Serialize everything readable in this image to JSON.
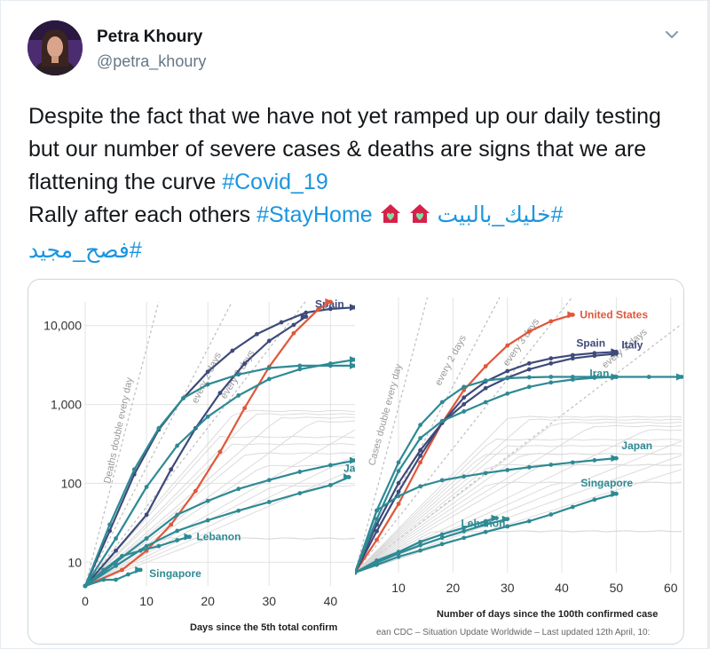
{
  "tweet": {
    "author_name": "Petra Khoury",
    "author_handle": "@petra_khoury",
    "text_part1": "Despite the fact that we have not yet ramped up our daily testing but our number of severe cases & deaths are signs that we are flattening the curve ",
    "hashtag_covid": "#Covid_19",
    "text_part2": "Rally after each others ",
    "hashtag_stayhome": "#StayHome",
    "hashtag_arabic_1": "#خليك_بالبيت",
    "hashtag_arabic_2": "#فصح_مجيد"
  },
  "media": {
    "source_caption": "ean CDC – Situation Update Worldwide – Last updated 12th April, 10:"
  },
  "chart_data": [
    {
      "type": "line",
      "scale": "log",
      "xlabel": "Days since the 5th total confirm",
      "y_tick_labels": [
        "10,000",
        "1,000",
        "100",
        "10"
      ],
      "y_ticks": [
        10000,
        1000,
        100,
        10
      ],
      "x_ticks": [
        0,
        10,
        20,
        30,
        40
      ],
      "ylim": [
        5,
        20000
      ],
      "xlim": [
        0,
        44
      ],
      "guide_labels": [
        "Deaths double every day",
        "every 2 days",
        "every 3 days"
      ],
      "series": [
        {
          "name": "Spain",
          "color": "#3e4a7a",
          "x": [
            0,
            4,
            8,
            12,
            16,
            20,
            24,
            28,
            32,
            36,
            40,
            44
          ],
          "y": [
            5,
            25,
            130,
            480,
            1200,
            2600,
            4800,
            7800,
            11000,
            14600,
            16300,
            17000
          ]
        },
        {
          "name": "",
          "color": "#e0573a",
          "x": [
            0,
            6,
            10,
            14,
            18,
            22,
            26,
            30,
            34,
            38,
            40
          ],
          "y": [
            5,
            8,
            14,
            30,
            80,
            250,
            900,
            3000,
            8000,
            16000,
            20000
          ]
        },
        {
          "name": "",
          "color": "#3e4a7a",
          "x": [
            0,
            5,
            10,
            14,
            18,
            22,
            26,
            30,
            34,
            36
          ],
          "y": [
            5,
            14,
            40,
            150,
            500,
            1400,
            3300,
            6400,
            10200,
            13000
          ]
        },
        {
          "name": "",
          "color": "#2e8a94",
          "x": [
            0,
            5,
            10,
            15,
            20,
            25,
            30,
            35,
            40,
            44
          ],
          "y": [
            5,
            20,
            90,
            300,
            700,
            1300,
            2100,
            2800,
            3300,
            3700
          ]
        },
        {
          "name": "",
          "color": "#2e8a94",
          "x": [
            0,
            4,
            8,
            12,
            16,
            20,
            25,
            30,
            35,
            40,
            44
          ],
          "y": [
            5,
            30,
            150,
            500,
            1200,
            1800,
            2400,
            2900,
            3100,
            3100,
            3100
          ]
        },
        {
          "name": "Ja",
          "color": "#2e8a94",
          "x": [
            0,
            5,
            10,
            15,
            20,
            25,
            30,
            35,
            40,
            43
          ],
          "y": [
            5,
            9,
            16,
            25,
            34,
            45,
            58,
            75,
            95,
            120
          ]
        },
        {
          "name": "",
          "color": "#2e8a94",
          "x": [
            0,
            5,
            10,
            15,
            20,
            25,
            30,
            35,
            40,
            44
          ],
          "y": [
            5,
            10,
            20,
            40,
            60,
            85,
            110,
            140,
            170,
            195
          ]
        },
        {
          "name": "Lebanon",
          "color": "#2e8a94",
          "x": [
            0,
            3,
            6,
            9,
            12,
            15,
            17
          ],
          "y": [
            5,
            8,
            12,
            14,
            16,
            19,
            21
          ]
        },
        {
          "name": "Singapore",
          "color": "#2e8a94",
          "x": [
            0,
            3,
            5,
            7,
            9
          ],
          "y": [
            5,
            6,
            6,
            7,
            8
          ]
        }
      ]
    },
    {
      "type": "line",
      "scale": "log",
      "xlabel": "Number of days since the 100th confirmed case",
      "x_ticks": [
        10,
        20,
        30,
        40,
        50,
        60
      ],
      "ylim": [
        100,
        1000000
      ],
      "xlim": [
        2,
        62
      ],
      "guide_labels": [
        "Cases double every day",
        "every 2 days",
        "every 3 days",
        "every 5 days"
      ],
      "series": [
        {
          "name": "United States",
          "color": "#e0573a",
          "x": [
            2,
            6,
            10,
            14,
            18,
            22,
            26,
            30,
            34,
            38,
            42
          ],
          "y": [
            100,
            300,
            1000,
            4000,
            15000,
            45000,
            100000,
            200000,
            320000,
            450000,
            560000
          ]
        },
        {
          "name": "Spain",
          "color": "#3e4a7a",
          "x": [
            2,
            6,
            10,
            14,
            18,
            22,
            26,
            30,
            34,
            38,
            42,
            46,
            50
          ],
          "y": [
            100,
            400,
            1500,
            5000,
            15000,
            35000,
            60000,
            85000,
            110000,
            130000,
            145000,
            155000,
            162000
          ]
        },
        {
          "name": "Italy",
          "color": "#3e4a7a",
          "x": [
            2,
            6,
            10,
            14,
            18,
            22,
            26,
            30,
            34,
            38,
            42,
            46,
            50
          ],
          "y": [
            100,
            500,
            2000,
            6000,
            15000,
            28000,
            48000,
            68000,
            90000,
            110000,
            130000,
            142000,
            152000
          ]
        },
        {
          "name": "Iran",
          "color": "#2e8a94",
          "x": [
            2,
            6,
            10,
            14,
            18,
            22,
            26,
            30,
            34,
            38,
            42,
            46,
            50
          ],
          "y": [
            100,
            600,
            3000,
            9000,
            16000,
            22000,
            30000,
            40000,
            50000,
            58000,
            64000,
            68000,
            70000
          ]
        },
        {
          "name": "",
          "color": "#2e8a94",
          "x": [
            2,
            6,
            10,
            14,
            18,
            22,
            26,
            30,
            34,
            38,
            42,
            46,
            50,
            56,
            62
          ],
          "y": [
            100,
            800,
            4000,
            14000,
            30000,
            50000,
            62000,
            67000,
            69000,
            70000,
            70000,
            70000,
            70000,
            70000,
            70000
          ]
        },
        {
          "name": "Japan",
          "color": "#2e8a94",
          "x": [
            2,
            6,
            10,
            14,
            18,
            22,
            26,
            30,
            34,
            38,
            42,
            46,
            50
          ],
          "y": [
            100,
            800,
            1300,
            1800,
            2200,
            2500,
            2800,
            3100,
            3400,
            3700,
            4000,
            4300,
            4600
          ]
        },
        {
          "name": "Singapore",
          "color": "#2e8a94",
          "x": [
            2,
            6,
            10,
            14,
            18,
            22,
            26,
            30,
            34,
            38,
            42,
            46,
            50
          ],
          "y": [
            100,
            130,
            170,
            210,
            260,
            320,
            390,
            470,
            560,
            700,
            900,
            1150,
            1400
          ]
        },
        {
          "name": "Lebanon",
          "color": "#2e8a94",
          "x": [
            2,
            6,
            10,
            14,
            18,
            22,
            26,
            28
          ],
          "y": [
            100,
            150,
            200,
            280,
            360,
            450,
            560,
            620
          ]
        },
        {
          "name": "",
          "color": "#2e8a94",
          "x": [
            2,
            6,
            10,
            14,
            18,
            22,
            26,
            30
          ],
          "y": [
            100,
            140,
            190,
            250,
            320,
            400,
            500,
            600
          ]
        }
      ]
    }
  ]
}
